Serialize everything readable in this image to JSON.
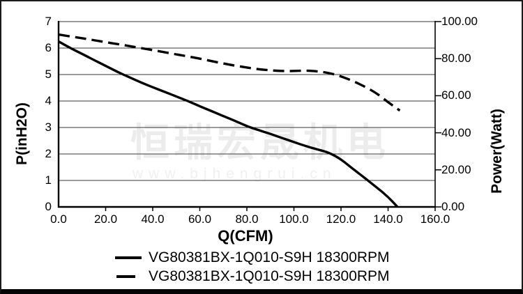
{
  "watermark": {
    "line1": "恒瑞宏晟机电",
    "line2": "www.bjhengrui.cn"
  },
  "chart_data": {
    "type": "line",
    "title": "",
    "xlabel": "Q(CFM)",
    "ylabel_left": "P(inH2O)",
    "ylabel_right": "Power(Watt)",
    "xlim": [
      0,
      160
    ],
    "ylim_left": [
      0,
      7
    ],
    "ylim_right": [
      0,
      100
    ],
    "grid": "horizontal-only",
    "legend_position": "bottom",
    "line_color": "#000000",
    "gridline_color": "#3a3a3a",
    "x_tick_labels": [
      "0.0",
      "20.0",
      "40.0",
      "60.0",
      "80.0",
      "100.0",
      "120.0",
      "140.0",
      "160.0"
    ],
    "y_tick_labels_left": [
      "7",
      "6",
      "5",
      "4",
      "3",
      "2",
      "1",
      "0"
    ],
    "y_tick_labels_right": [
      "100.00",
      "80.00",
      "60.00",
      "40.00",
      "20.00",
      "0.00"
    ],
    "series": [
      {
        "name": "VG80381BX-1Q010-S9H 18300RPM",
        "axis": "left",
        "style": "solid",
        "unit": "inH2O",
        "x": [
          0,
          5,
          10,
          15,
          20,
          25,
          30,
          35,
          40,
          45,
          50,
          55,
          60,
          65,
          70,
          75,
          80,
          85,
          90,
          95,
          100,
          105,
          110,
          115,
          120,
          125,
          130,
          135,
          140,
          144
        ],
        "y": [
          6.25,
          6.0,
          5.78,
          5.55,
          5.33,
          5.1,
          4.9,
          4.7,
          4.52,
          4.35,
          4.17,
          4.0,
          3.8,
          3.62,
          3.43,
          3.25,
          3.05,
          2.9,
          2.76,
          2.6,
          2.45,
          2.3,
          2.17,
          2.05,
          1.8,
          1.44,
          1.1,
          0.75,
          0.38,
          0
        ]
      },
      {
        "name": "VG80381BX-1Q010-S9H 18300RPM",
        "axis": "right",
        "style": "dashed",
        "unit": "Watt",
        "x": [
          0,
          5,
          10,
          15,
          20,
          25,
          30,
          35,
          40,
          45,
          50,
          55,
          60,
          65,
          70,
          75,
          80,
          85,
          90,
          95,
          100,
          105,
          110,
          115,
          120,
          125,
          130,
          135,
          140,
          145
        ],
        "y": [
          93,
          92,
          91,
          90,
          88.9,
          87.9,
          86.8,
          85.7,
          84.6,
          83.5,
          82.3,
          81.2,
          80,
          78.7,
          77.4,
          76.2,
          75.2,
          74.3,
          73.7,
          73.3,
          73.3,
          73.6,
          73.2,
          72.3,
          70.5,
          68,
          65,
          61.5,
          56.5,
          52
        ]
      }
    ]
  }
}
